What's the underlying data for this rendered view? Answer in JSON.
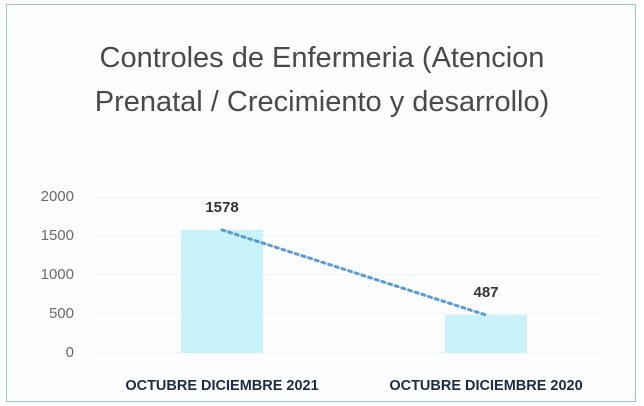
{
  "chart_data": {
    "type": "bar",
    "title": "Controles de Enfermeria (Atencion Prenatal / Crecimiento y desarrollo)",
    "categories": [
      "OCTUBRE DICIEMBRE 2021",
      "OCTUBRE DICIEMBRE 2020"
    ],
    "values": [
      1578,
      487
    ],
    "color": "#c8f1f9",
    "trendline_color": "#5b9bd5",
    "ylim": [
      0,
      2000
    ],
    "yticks": [
      0,
      500,
      1000,
      1500,
      2000
    ],
    "grid": true
  }
}
